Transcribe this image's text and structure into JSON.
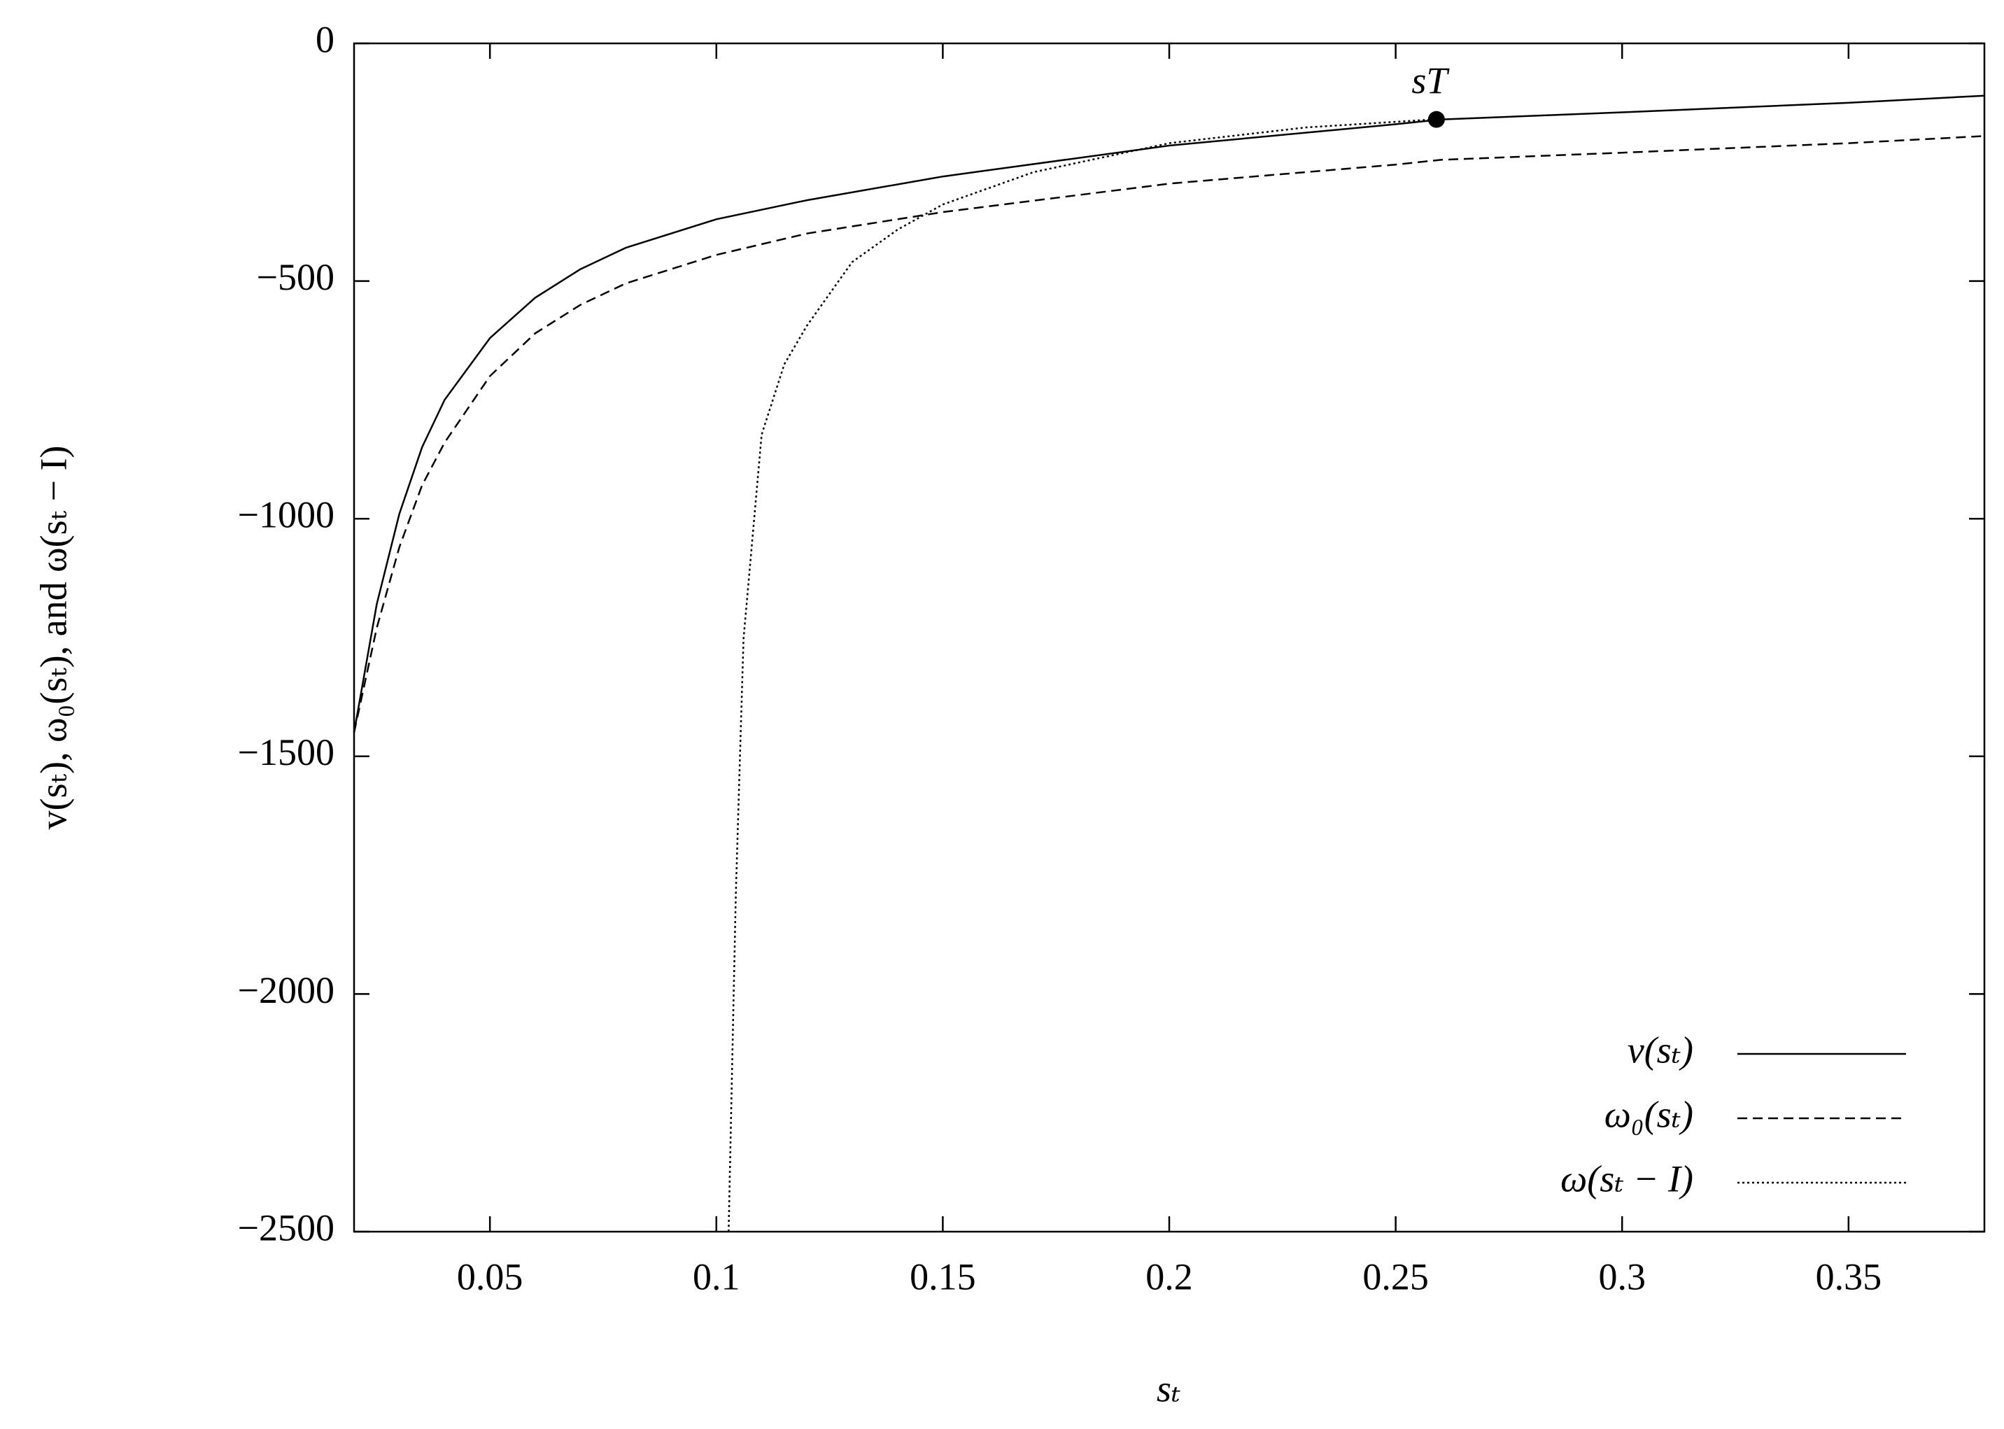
{
  "chart_data": {
    "type": "line",
    "xlabel": "sₜ",
    "ylabel": "v(sₜ), ω₀(sₜ), and ω(sₜ − I)",
    "xlim": [
      0.02,
      0.38
    ],
    "ylim": [
      -2500,
      0
    ],
    "xticks": [
      0.05,
      0.1,
      0.15,
      0.2,
      0.25,
      0.3,
      0.35
    ],
    "yticks": [
      {
        "value": -2500,
        "label": "−2500"
      },
      {
        "value": -2000,
        "label": "−2000"
      },
      {
        "value": -1500,
        "label": "−1500"
      },
      {
        "value": -1000,
        "label": "−1000"
      },
      {
        "value": -500,
        "label": "−500"
      },
      0
    ],
    "legend": "lower right",
    "series": [
      {
        "name": "v(sₜ)",
        "color": "#000000",
        "dash": "solid",
        "x": [
          0.02,
          0.025,
          0.03,
          0.035,
          0.04,
          0.05,
          0.06,
          0.07,
          0.08,
          0.1,
          0.12,
          0.15,
          0.2,
          0.25,
          0.26,
          0.3,
          0.35,
          0.38
        ],
        "values": [
          -1450,
          -1180,
          -990,
          -850,
          -750,
          -620,
          -535,
          -475,
          -430,
          -370,
          -330,
          -280,
          -215,
          -170,
          -160,
          -145,
          -125,
          -110
        ]
      },
      {
        "name": "ω₀(sₜ)",
        "color": "#000000",
        "dash": "dashed",
        "x": [
          0.02,
          0.025,
          0.03,
          0.035,
          0.04,
          0.05,
          0.06,
          0.07,
          0.08,
          0.1,
          0.12,
          0.15,
          0.2,
          0.25,
          0.26,
          0.3,
          0.35,
          0.38
        ],
        "values": [
          -1450,
          -1230,
          -1060,
          -930,
          -840,
          -700,
          -610,
          -550,
          -505,
          -445,
          -400,
          -355,
          -295,
          -255,
          -245,
          -230,
          -210,
          -195
        ]
      },
      {
        "name": "ω(sₜ − I)",
        "color": "#000000",
        "dash": "dotted",
        "x": [
          0.1027,
          0.1043,
          0.106,
          0.11,
          0.115,
          0.12,
          0.13,
          0.14,
          0.15,
          0.17,
          0.2,
          0.23,
          0.26
        ],
        "values": [
          -2500,
          -1790,
          -1253,
          -823,
          -675,
          -594,
          -460,
          -392,
          -339,
          -271,
          -210,
          -177,
          -159
        ]
      }
    ],
    "marker": {
      "x": 0.259,
      "y": -160,
      "label": "sT"
    }
  }
}
